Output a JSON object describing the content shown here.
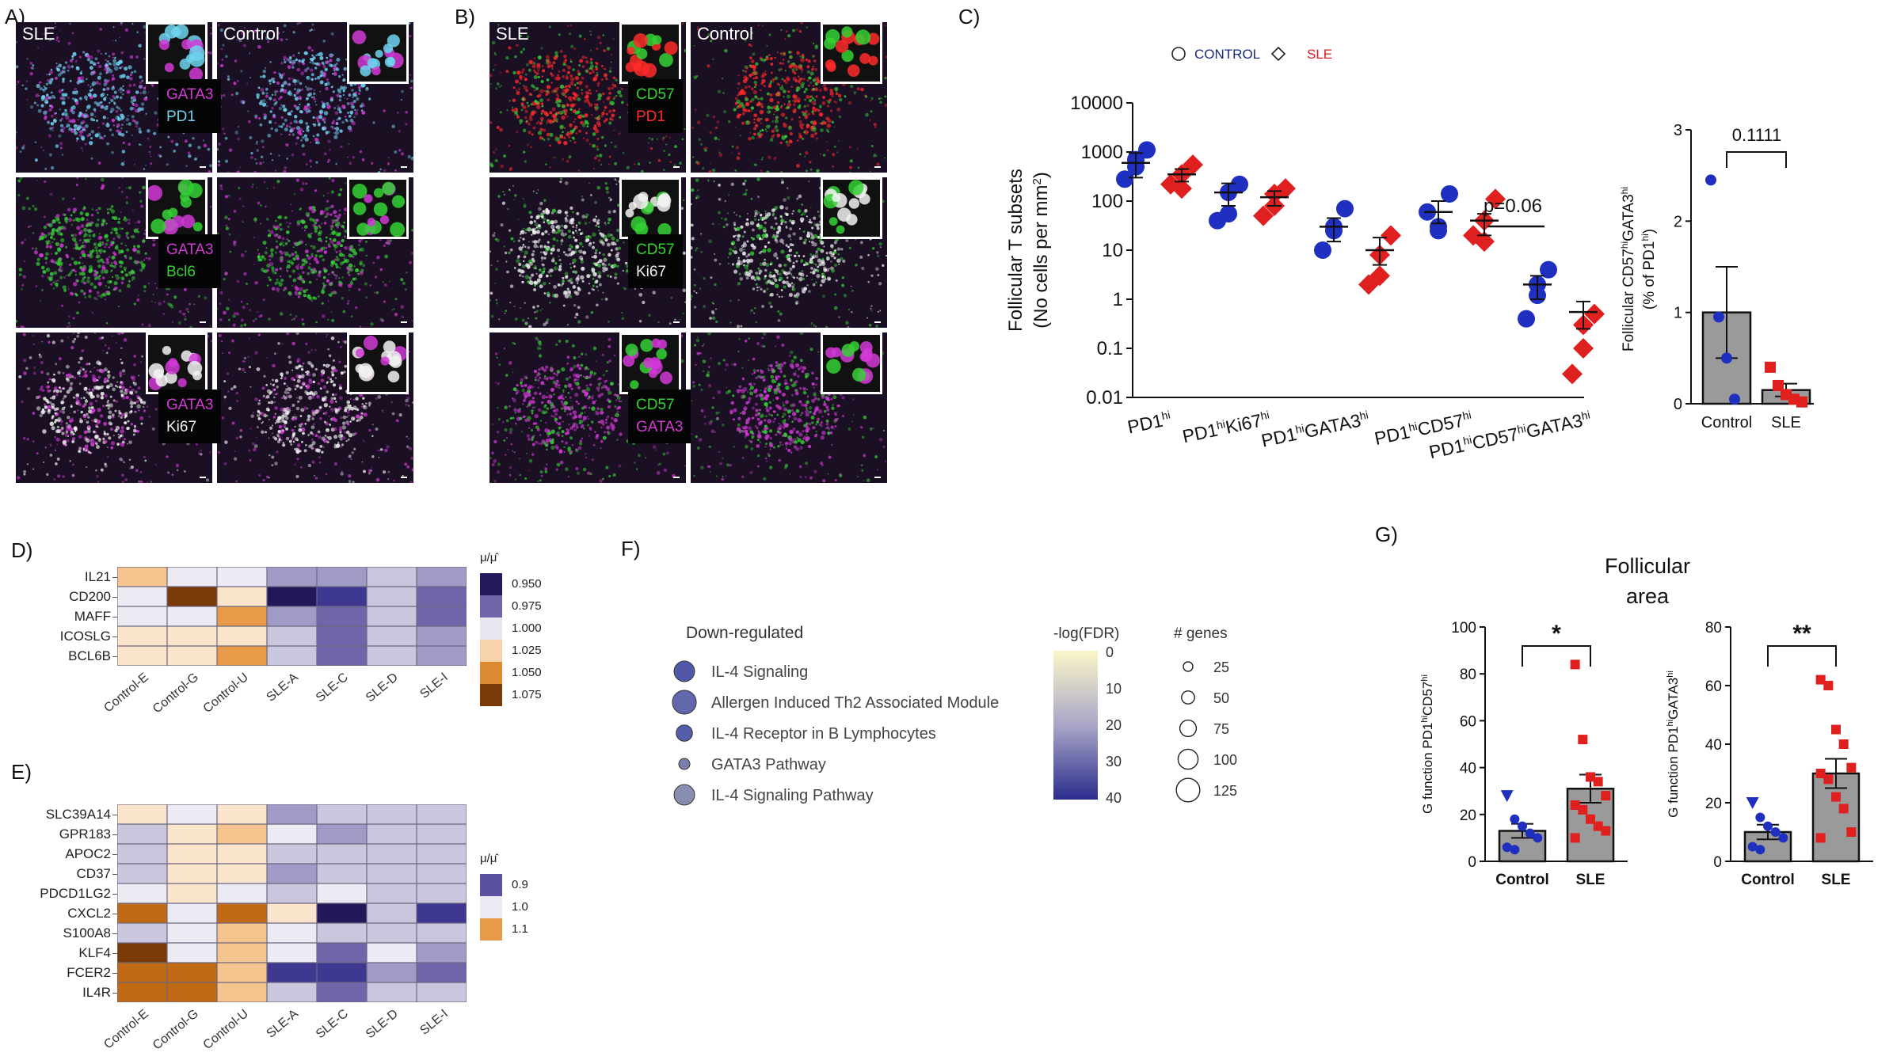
{
  "panelA": {
    "label": "A)",
    "left_title": "SLE",
    "right_title": "Control",
    "rows": [
      {
        "m1": "GATA3",
        "m2": "PD1",
        "c1": "#d23ad6",
        "c2": "#6fd3ef"
      },
      {
        "m1": "GATA3",
        "m2": "Bcl6",
        "c1": "#d23ad6",
        "c2": "#34d134"
      },
      {
        "m1": "GATA3",
        "m2": "Ki67",
        "c1": "#d23ad6",
        "c2": "#f2f2f2"
      }
    ]
  },
  "panelB": {
    "label": "B)",
    "left_title": "SLE",
    "right_title": "Control",
    "rows": [
      {
        "m1": "CD57",
        "m2": "PD1",
        "c1": "#34d134",
        "c2": "#ff2a2a"
      },
      {
        "m1": "CD57",
        "m2": "Ki67",
        "c1": "#34d134",
        "c2": "#f2f2f2"
      },
      {
        "m1": "CD57",
        "m2": "GATA3",
        "c1": "#34d134",
        "c2": "#d23ad6"
      }
    ]
  },
  "panelC": {
    "label": "C)",
    "legend": {
      "control": "CONTROL",
      "sle": "SLE"
    },
    "ylabel_line1": "Follicular T subsets",
    "ylabel_line2": "(No cells per mm",
    "ylabel_sup": "2",
    "ylabel_end": ")",
    "annotation": "p=0.06",
    "right_plot": {
      "ylabel_line1": "Follicular CD57",
      "ylabel_sup1": "hi",
      "ylabel_mid": "GATA3",
      "ylabel_sup2": "hi",
      "ylabel_line2": "(% of PD1",
      "ylabel_sup3": "hi",
      "ylabel_end": ")",
      "pvalue": "0.1111"
    }
  },
  "panelD": {
    "label": "D)",
    "legend_title": "μ/μ̂",
    "legend_values": [
      "0.950",
      "0.975",
      "1.000",
      "1.025",
      "1.050",
      "1.075"
    ],
    "legend_colors": [
      "#221a5a",
      "#6e66a8",
      "#e8e6f0",
      "#f8d2ac",
      "#dc8a32",
      "#7a3a08"
    ],
    "genes": [
      "IL21",
      "CD200",
      "MAFF",
      "ICOSLG",
      "BCL6B"
    ],
    "columns": [
      "Control-E",
      "Control-G",
      "Control-U",
      "SLE-A",
      "SLE-C",
      "SLE-D",
      "SLE-I"
    ]
  },
  "panelE": {
    "label": "E)",
    "legend_title": "μ/μ̂",
    "legend_values": [
      "0.9",
      "1.0",
      "1.1"
    ],
    "legend_colors": [
      "#5a52a0",
      "#eceaf2",
      "#e89a48"
    ],
    "genes": [
      "SLC39A14",
      "GPR183",
      "APOC2",
      "CD37",
      "PDCD1LG2",
      "CXCL2",
      "S100A8",
      "KLF4",
      "FCER2",
      "IL4R"
    ],
    "columns": [
      "Control-E",
      "Control-G",
      "Control-U",
      "SLE-A",
      "SLE-C",
      "SLE-D",
      "SLE-I"
    ]
  },
  "panelF": {
    "label": "F)",
    "title": "Down-regulated",
    "pathways": [
      {
        "name": "IL-4 Signaling",
        "genes": 75,
        "fdr": 33
      },
      {
        "name": "Allergen Induced Th2 Associated Module",
        "genes": 110,
        "fdr": 30
      },
      {
        "name": "IL-4 Receptor in B Lymphocytes",
        "genes": 40,
        "fdr": 32
      },
      {
        "name": "GATA3 Pathway",
        "genes": 12,
        "fdr": 25
      },
      {
        "name": "IL-4 Signaling Pathway",
        "genes": 75,
        "fdr": 22
      }
    ],
    "colorbar_title": "-log(FDR)",
    "colorbar_ticks": [
      "0",
      "10",
      "20",
      "30",
      "40"
    ],
    "size_title": "# genes",
    "size_ticks": [
      "25",
      "50",
      "75",
      "100",
      "125"
    ]
  },
  "panelG": {
    "label": "G)",
    "title_line1": "Follicular",
    "title_line2": "area",
    "plot1": {
      "ylabel": "G function PD1",
      "sup1": "hi",
      "mid": "CD57",
      "sup2": "hi",
      "sig": "*"
    },
    "plot2": {
      "ylabel": "G function PD1",
      "sup1": "hi",
      "mid": "GATA3",
      "sup2": "hi",
      "sig": "**"
    }
  },
  "chart_data": [
    {
      "type": "scatter",
      "title": "",
      "ylabel": "Follicular T subsets (No cells per mm2)",
      "yscale": "log",
      "ylim": [
        0.01,
        10000
      ],
      "yticks": [
        "0.01",
        "0.1",
        "1",
        "10",
        "100",
        "1000",
        "10000"
      ],
      "categories": [
        "PD1hi",
        "PD1hiKi67hi",
        "PD1hiGATA3hi",
        "PD1hiCD57hi",
        "PD1hiCD57hiGATA3hi"
      ],
      "series": [
        {
          "name": "CONTROL",
          "color": "#1f2fbf",
          "marker": "circle",
          "values": [
            [
              1100,
              700,
              280,
              500
            ],
            [
              220,
              55,
              40,
              150
            ],
            [
              70,
              25,
              10,
              30
            ],
            [
              140,
              30,
              60,
              25
            ],
            [
              4,
              2,
              0.4,
              1.2
            ]
          ],
          "mean": [
            600,
            150,
            30,
            60,
            2
          ],
          "sem": [
            [
              300,
              950
            ],
            [
              80,
              230
            ],
            [
              15,
              45
            ],
            [
              35,
              100
            ],
            [
              1,
              3
            ]
          ]
        },
        {
          "name": "SLE",
          "color": "#e01f1f",
          "marker": "diamond",
          "values": [
            [
              550,
              350,
              220,
              180
            ],
            [
              180,
              80,
              50,
              140
            ],
            [
              20,
              8,
              2,
              3
            ],
            [
              110,
              40,
              20,
              15
            ],
            [
              0.5,
              0.1,
              0.03,
              0.3
            ]
          ],
          "mean": [
            350,
            120,
            10,
            40,
            0.55
          ],
          "sem": [
            [
              250,
              450
            ],
            [
              80,
              160
            ],
            [
              5,
              18
            ],
            [
              20,
              55
            ],
            [
              0.25,
              0.9
            ]
          ]
        }
      ]
    },
    {
      "type": "bar",
      "title": "",
      "ylabel": "Follicular CD57hiGATA3hi (% of PD1hi)",
      "ylim": [
        0,
        3
      ],
      "yticks": [
        "0",
        "1",
        "2",
        "3"
      ],
      "categories": [
        "Control",
        "SLE"
      ],
      "values": [
        1.0,
        0.15
      ],
      "sem": [
        0.5,
        0.07
      ],
      "points": [
        [
          2.45,
          0.95,
          0.5,
          0.05
        ],
        [
          0.4,
          0.2,
          0.1,
          0.05,
          0.02
        ]
      ]
    },
    {
      "type": "bar",
      "title": "",
      "ylabel": "G function PD1hiCD57hi",
      "ylim": [
        0,
        100
      ],
      "yticks": [
        "0",
        "20",
        "40",
        "60",
        "80",
        "100"
      ],
      "categories": [
        "Control",
        "SLE"
      ],
      "values": [
        13,
        31
      ],
      "sem": [
        3,
        6
      ],
      "points": [
        [
          28,
          18,
          15,
          12,
          10,
          6,
          5
        ],
        [
          84,
          52,
          36,
          34,
          28,
          24,
          22,
          18,
          15,
          13,
          10
        ]
      ]
    },
    {
      "type": "bar",
      "title": "",
      "ylabel": "G function PD1hiGATA3hi",
      "ylim": [
        0,
        80
      ],
      "yticks": [
        "0",
        "20",
        "40",
        "60",
        "80"
      ],
      "categories": [
        "Control",
        "SLE"
      ],
      "values": [
        10,
        30
      ],
      "sem": [
        2.5,
        5
      ],
      "points": [
        [
          20,
          15,
          12,
          10,
          8,
          5,
          4
        ],
        [
          62,
          60,
          45,
          40,
          32,
          30,
          28,
          22,
          18,
          10,
          8
        ]
      ]
    }
  ]
}
